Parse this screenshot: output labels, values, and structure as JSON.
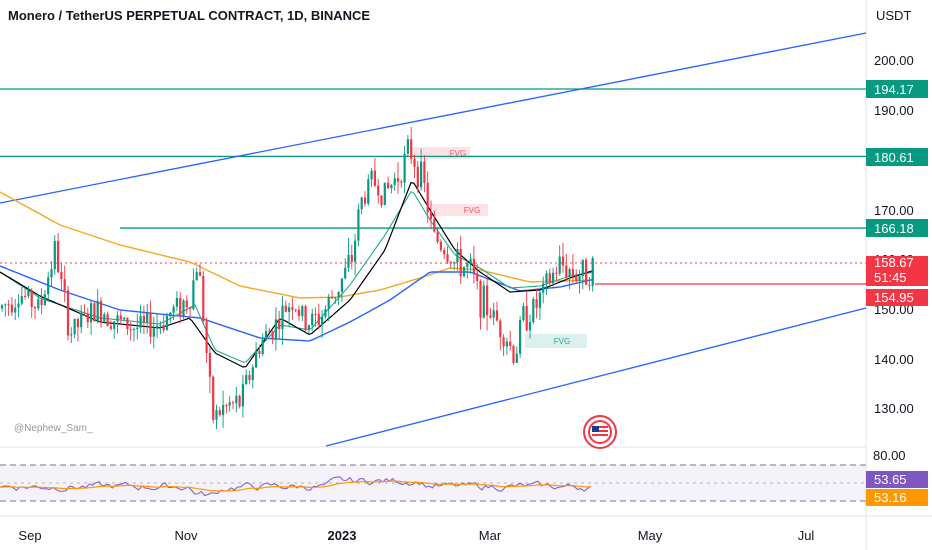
{
  "header": {
    "title": "Monero / TetherUS PERPETUAL CONTRACT, 1D, BINANCE"
  },
  "watermark": "@Nephew_Sam_",
  "chart_data": {
    "type": "candlestick",
    "currency": "USDT",
    "price_axis": {
      "ticks": [
        "200.00",
        "190.00",
        "170.00",
        "160.00",
        "150.00",
        "140.00",
        "130.00"
      ],
      "ylim": [
        120.5,
        213
      ]
    },
    "time_axis": {
      "ticks": [
        "Sep",
        "Nov",
        "2023",
        "Mar",
        "May",
        "Jul"
      ],
      "bold": [
        "2023"
      ]
    },
    "horizontal_levels": [
      {
        "value": 194.17,
        "label": "194.17",
        "color": "#089981"
      },
      {
        "value": 180.61,
        "label": "180.61",
        "color": "#089981"
      },
      {
        "value": 166.18,
        "label": "166.18",
        "color": "#089981"
      }
    ],
    "price_labels": [
      {
        "label": "158.67",
        "color": "#f23645"
      },
      {
        "label": "51:45",
        "color": "#f23645"
      },
      {
        "label": "154.95",
        "color": "#f23645"
      }
    ],
    "fvg_zones": [
      {
        "label": "FVG",
        "color": "#f7525f"
      },
      {
        "label": "FVG",
        "color": "#f7525f"
      },
      {
        "label": "FVG",
        "color": "#22ab94"
      }
    ],
    "rsi_panel": {
      "ticks": [
        "80.00"
      ],
      "labels": [
        {
          "label": "53.65",
          "color": "#7e57c2"
        },
        {
          "label": "53.16",
          "color": "#ff9800"
        }
      ]
    },
    "colors": {
      "up": "#089981",
      "down": "#f23645",
      "trend": "#2962ff",
      "ma_long": "#f5a623",
      "ma_mid": "#2962ff"
    }
  }
}
